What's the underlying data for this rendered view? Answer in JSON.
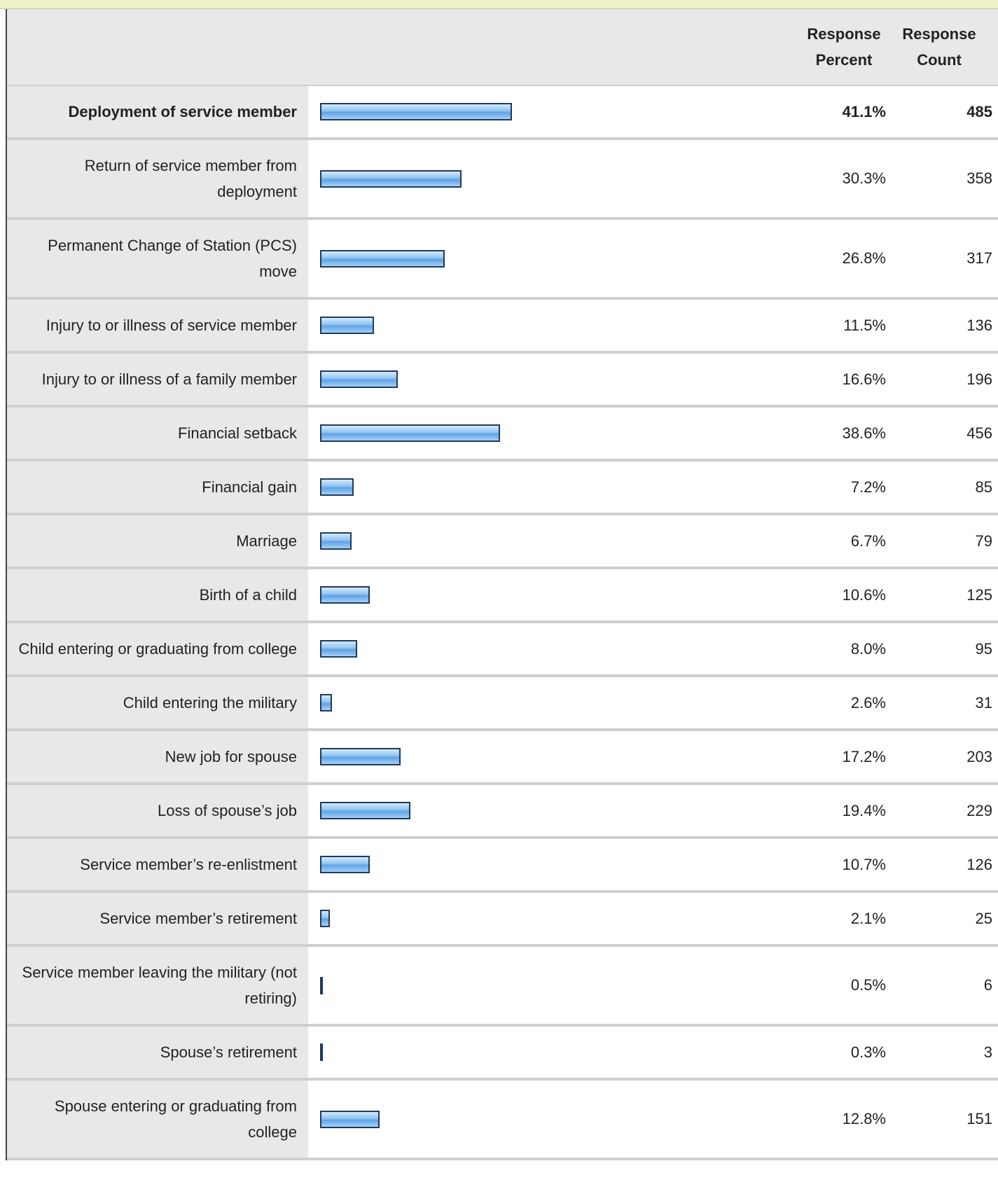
{
  "chart_data": {
    "type": "bar",
    "percent_header": "Response Percent",
    "count_header": "Response Count",
    "categories": [
      "Deployment of service member",
      "Return of service member from deployment",
      "Permanent Change of Station (PCS) move",
      "Injury to or illness of service member",
      "Injury to or illness of a family member",
      "Financial setback",
      "Financial gain",
      "Marriage",
      "Birth of a child",
      "Child entering or graduating from college",
      "Child entering the military",
      "New job for spouse",
      "Loss of spouse’s job",
      "Service member’s re-enlistment",
      "Service member’s retirement",
      "Service member leaving the military (not retiring)",
      "Spouse’s retirement",
      "Spouse entering or graduating from college"
    ],
    "values": [
      41.1,
      30.3,
      26.8,
      11.5,
      16.6,
      38.6,
      7.2,
      6.7,
      10.6,
      8.0,
      2.6,
      17.2,
      19.4,
      10.7,
      2.1,
      0.5,
      0.3,
      12.8
    ],
    "value_labels": [
      "41.1%",
      "30.3%",
      "26.8%",
      "11.5%",
      "16.6%",
      "38.6%",
      "7.2%",
      "6.7%",
      "10.6%",
      "8.0%",
      "2.6%",
      "17.2%",
      "19.4%",
      "10.7%",
      "2.1%",
      "0.5%",
      "0.3%",
      "12.8%"
    ],
    "counts": [
      485,
      358,
      317,
      136,
      196,
      456,
      85,
      79,
      125,
      95,
      31,
      203,
      229,
      126,
      25,
      6,
      3,
      151
    ],
    "color": "#8ec3f2"
  }
}
